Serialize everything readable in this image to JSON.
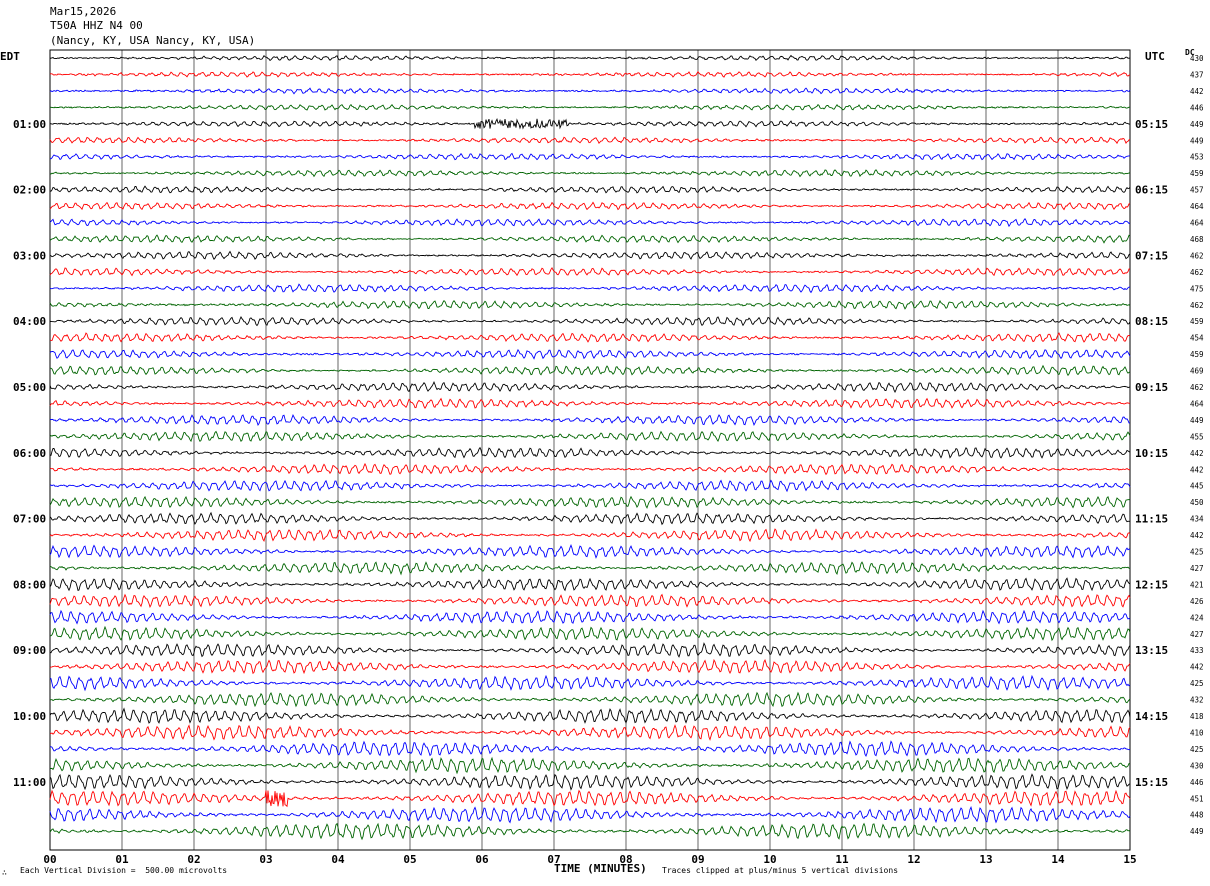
{
  "header": {
    "date": "Mar15,2026",
    "station": "T50A HHZ N4 00",
    "location": "(Nancy, KY, USA Nancy, KY, USA)"
  },
  "left_axis_title": "EDT",
  "right_axis_title": "UTC",
  "dc_label": "DC",
  "footer": {
    "scale_note": "Each Vertical Division =  500.00 microvolts",
    "clip_note": "Traces clipped at plus/minus 5 vertical divisions",
    "corner_mark": "∴"
  },
  "chart_data": {
    "type": "line",
    "title": "",
    "xlabel": "TIME (MINUTES)",
    "x_ticks": [
      "00",
      "01",
      "02",
      "03",
      "04",
      "05",
      "06",
      "07",
      "08",
      "09",
      "10",
      "11",
      "12",
      "13",
      "14",
      "15"
    ],
    "xlim": [
      0,
      15
    ],
    "grid": true,
    "rows_per_hour": 4,
    "trace_colors": [
      "#000000",
      "#ff0000",
      "#0000ff",
      "#006400"
    ],
    "left_time_labels": [
      "01:00",
      "02:00",
      "03:00",
      "04:00",
      "05:00",
      "06:00",
      "07:00",
      "08:00",
      "09:00",
      "10:00",
      "11:00"
    ],
    "right_time_labels": [
      "05:15",
      "06:15",
      "07:15",
      "08:15",
      "09:15",
      "10:15",
      "11:15",
      "12:15",
      "13:15",
      "14:15",
      "15:15"
    ],
    "dc_offsets": [
      "430",
      "437",
      "442",
      "446",
      "449",
      "449",
      "453",
      "459",
      "457",
      "464",
      "464",
      "468",
      "462",
      "462",
      "475",
      "462",
      "459",
      "454",
      "459",
      "469",
      "462",
      "464",
      "449",
      "455",
      "442",
      "442",
      "445",
      "450",
      "434",
      "442",
      "425",
      "427",
      "421",
      "426",
      "424",
      "427",
      "433",
      "442",
      "425",
      "432",
      "418",
      "410",
      "425",
      "430",
      "446",
      "451",
      "448",
      "449"
    ],
    "events": [
      {
        "row": 4,
        "start_minute": 5.9,
        "end_minute": 7.2,
        "note": "high-frequency burst"
      },
      {
        "row": 45,
        "start_minute": 3.0,
        "end_minute": 3.3,
        "note": "large spike"
      }
    ]
  }
}
